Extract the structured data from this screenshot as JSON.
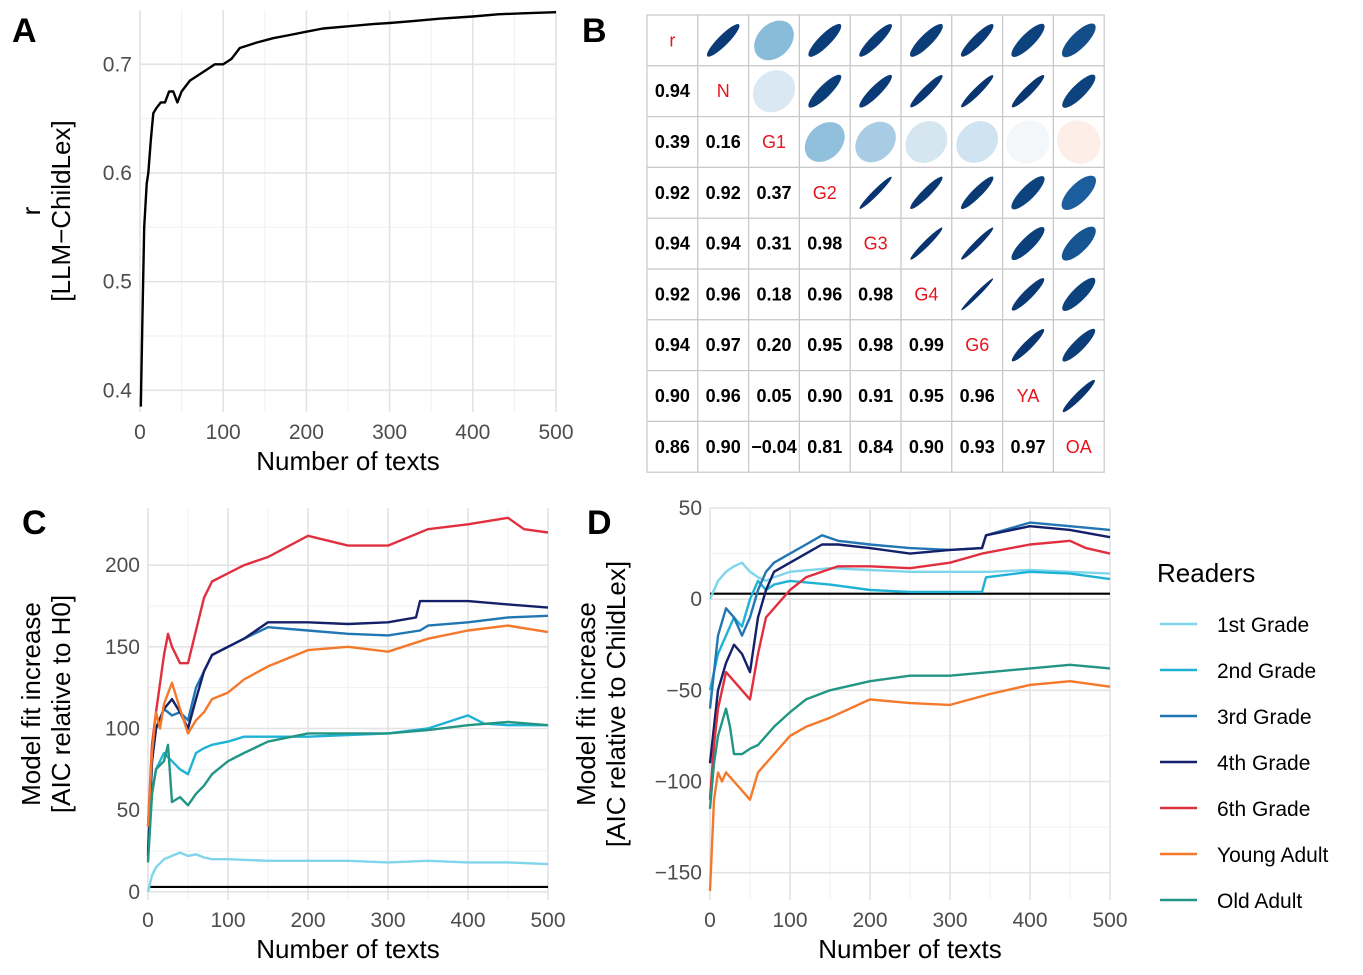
{
  "panel_labels": [
    "A",
    "B",
    "C",
    "D"
  ],
  "colors": {
    "1st Grade": "#7fd6ea",
    "2nd Grade": "#1fb2d6",
    "3rd Grade": "#2276b4",
    "4th Grade": "#14206a",
    "6th Grade": "#e0303f",
    "Young Adult": "#f4792b",
    "Old Adult": "#239584",
    "lineA": "#000000"
  },
  "chart_data": [
    {
      "id": "A",
      "type": "line",
      "title": "",
      "xlabel": "Number of texts",
      "ylabel": [
        "r",
        "[LLM−ChildLex]"
      ],
      "xlim": [
        0,
        500
      ],
      "ylim": [
        0.38,
        0.75
      ],
      "xticks": [
        0,
        100,
        200,
        300,
        400,
        500
      ],
      "yticks": [
        0.4,
        0.5,
        0.6,
        0.7
      ],
      "ytick_labels": [
        "0.4",
        "0.5",
        "0.6",
        "0.7"
      ],
      "grid": true,
      "series": [
        {
          "name": "r",
          "x": [
            1,
            3,
            5,
            8,
            10,
            13,
            16,
            20,
            25,
            30,
            35,
            40,
            45,
            50,
            60,
            70,
            80,
            90,
            100,
            110,
            120,
            140,
            160,
            180,
            200,
            220,
            250,
            280,
            300,
            330,
            360,
            400,
            430,
            460,
            500
          ],
          "y": [
            0.385,
            0.47,
            0.55,
            0.59,
            0.6,
            0.63,
            0.655,
            0.66,
            0.665,
            0.665,
            0.675,
            0.675,
            0.665,
            0.675,
            0.685,
            0.69,
            0.695,
            0.7,
            0.7,
            0.705,
            0.715,
            0.72,
            0.724,
            0.727,
            0.73,
            0.733,
            0.735,
            0.737,
            0.738,
            0.74,
            0.742,
            0.744,
            0.746,
            0.747,
            0.748
          ]
        }
      ]
    },
    {
      "id": "B",
      "type": "heatmap",
      "title": "",
      "labels": [
        "r",
        "N",
        "G1",
        "G2",
        "G3",
        "G4",
        "G6",
        "YA",
        "OA"
      ],
      "lower": [
        [],
        [
          0.94
        ],
        [
          0.39,
          0.16
        ],
        [
          0.92,
          0.92,
          0.37
        ],
        [
          0.94,
          0.94,
          0.31,
          0.98
        ],
        [
          0.92,
          0.96,
          0.18,
          0.96,
          0.98
        ],
        [
          0.94,
          0.97,
          0.2,
          0.95,
          0.98,
          0.99
        ],
        [
          0.9,
          0.96,
          0.05,
          0.9,
          0.91,
          0.95,
          0.96
        ],
        [
          0.86,
          0.9,
          -0.04,
          0.81,
          0.84,
          0.9,
          0.93,
          0.97
        ]
      ],
      "lower_labels": [
        [],
        [
          "0.94"
        ],
        [
          "0.39",
          "0.16"
        ],
        [
          "0.92",
          "0.92",
          "0.37"
        ],
        [
          "0.94",
          "0.94",
          "0.31",
          "0.98"
        ],
        [
          "0.92",
          "0.96",
          "0.18",
          "0.96",
          "0.98"
        ],
        [
          "0.94",
          "0.97",
          "0.20",
          "0.95",
          "0.98",
          "0.99"
        ],
        [
          "0.90",
          "0.96",
          "0.05",
          "0.90",
          "0.91",
          "0.95",
          "0.96"
        ],
        [
          "0.86",
          "0.90",
          "−0.04",
          "0.81",
          "0.84",
          "0.90",
          "0.93",
          "0.97"
        ]
      ]
    },
    {
      "id": "C",
      "type": "line",
      "title": "",
      "xlabel": "Number of texts",
      "ylabel": [
        "Model fit increase",
        "[AIC relative to H0]"
      ],
      "xlim": [
        0,
        500
      ],
      "ylim": [
        -5,
        235
      ],
      "xticks": [
        0,
        100,
        200,
        300,
        400,
        500
      ],
      "yticks": [
        0,
        50,
        100,
        150,
        200
      ],
      "ytick_labels": [
        "0",
        "50",
        "100",
        "150",
        "200"
      ],
      "hline": 3,
      "grid": true,
      "series": [
        {
          "name": "1st Grade",
          "x": [
            0,
            5,
            10,
            20,
            30,
            40,
            50,
            60,
            70,
            80,
            100,
            150,
            200,
            250,
            300,
            350,
            400,
            450,
            500
          ],
          "y": [
            0,
            10,
            15,
            20,
            22,
            24,
            22,
            23,
            21,
            20,
            20,
            19,
            19,
            19,
            18,
            19,
            18,
            18,
            17
          ]
        },
        {
          "name": "2nd Grade",
          "x": [
            0,
            5,
            10,
            20,
            30,
            40,
            50,
            60,
            70,
            80,
            100,
            120,
            150,
            200,
            250,
            300,
            350,
            400,
            420,
            450,
            500
          ],
          "y": [
            20,
            60,
            75,
            85,
            80,
            75,
            72,
            85,
            88,
            90,
            92,
            95,
            95,
            95,
            96,
            97,
            100,
            108,
            103,
            102,
            102
          ]
        },
        {
          "name": "3rd Grade",
          "x": [
            0,
            5,
            10,
            20,
            30,
            40,
            50,
            60,
            70,
            80,
            100,
            120,
            150,
            200,
            250,
            300,
            340,
            350,
            400,
            450,
            500
          ],
          "y": [
            25,
            80,
            100,
            112,
            108,
            110,
            105,
            125,
            135,
            145,
            150,
            155,
            162,
            160,
            158,
            157,
            160,
            163,
            165,
            168,
            169
          ]
        },
        {
          "name": "4th Grade",
          "x": [
            0,
            5,
            10,
            20,
            30,
            40,
            50,
            60,
            70,
            80,
            100,
            120,
            150,
            200,
            250,
            300,
            335,
            340,
            400,
            450,
            500
          ],
          "y": [
            22,
            80,
            100,
            112,
            118,
            110,
            100,
            118,
            135,
            145,
            150,
            155,
            165,
            165,
            164,
            165,
            168,
            178,
            178,
            176,
            174
          ]
        },
        {
          "name": "6th Grade",
          "x": [
            0,
            5,
            10,
            20,
            25,
            30,
            40,
            50,
            60,
            70,
            80,
            100,
            120,
            150,
            200,
            250,
            300,
            350,
            400,
            450,
            470,
            500
          ],
          "y": [
            40,
            90,
            110,
            145,
            158,
            150,
            140,
            140,
            160,
            180,
            190,
            195,
            200,
            205,
            218,
            212,
            212,
            222,
            225,
            229,
            222,
            220
          ]
        },
        {
          "name": "Young Adult",
          "x": [
            0,
            5,
            10,
            15,
            20,
            30,
            40,
            50,
            60,
            70,
            80,
            100,
            120,
            150,
            200,
            250,
            300,
            350,
            400,
            450,
            500
          ],
          "y": [
            40,
            85,
            110,
            100,
            115,
            128,
            112,
            97,
            105,
            110,
            118,
            122,
            130,
            138,
            148,
            150,
            147,
            155,
            160,
            163,
            159
          ]
        },
        {
          "name": "Old Adult",
          "x": [
            0,
            5,
            10,
            20,
            25,
            30,
            40,
            50,
            60,
            70,
            80,
            100,
            120,
            150,
            200,
            250,
            300,
            350,
            400,
            450,
            500
          ],
          "y": [
            18,
            60,
            75,
            80,
            90,
            55,
            58,
            53,
            60,
            65,
            72,
            80,
            85,
            92,
            97,
            97,
            97,
            99,
            102,
            104,
            102
          ]
        }
      ]
    },
    {
      "id": "D",
      "type": "line",
      "title": "",
      "xlabel": "Number of texts",
      "ylabel": [
        "Model fit increase",
        "[AIC relative to ChildLex]"
      ],
      "xlim": [
        0,
        500
      ],
      "ylim": [
        -165,
        50
      ],
      "xticks": [
        0,
        100,
        200,
        300,
        400,
        500
      ],
      "yticks": [
        -150,
        -100,
        -50,
        0,
        50
      ],
      "ytick_labels": [
        "−150",
        "−100",
        "−50",
        "0",
        "50"
      ],
      "hline": 3,
      "grid": true,
      "series": [
        {
          "name": "1st Grade",
          "x": [
            0,
            5,
            10,
            20,
            30,
            40,
            50,
            60,
            70,
            80,
            100,
            150,
            200,
            250,
            300,
            350,
            400,
            450,
            500
          ],
          "y": [
            0,
            5,
            10,
            15,
            18,
            20,
            15,
            12,
            10,
            12,
            15,
            17,
            16,
            15,
            15,
            15,
            16,
            15,
            14
          ]
        },
        {
          "name": "2nd Grade",
          "x": [
            0,
            5,
            10,
            20,
            30,
            40,
            50,
            60,
            70,
            80,
            100,
            150,
            200,
            250,
            300,
            340,
            345,
            400,
            450,
            500
          ],
          "y": [
            -50,
            -40,
            -30,
            -20,
            -10,
            -15,
            0,
            10,
            5,
            8,
            10,
            8,
            5,
            4,
            4,
            4,
            12,
            15,
            14,
            11
          ]
        },
        {
          "name": "3rd Grade",
          "x": [
            0,
            5,
            10,
            20,
            30,
            40,
            50,
            60,
            70,
            80,
            100,
            120,
            140,
            160,
            200,
            250,
            300,
            340,
            345,
            400,
            450,
            500
          ],
          "y": [
            -60,
            -40,
            -20,
            -5,
            -10,
            -20,
            -10,
            5,
            15,
            20,
            25,
            30,
            35,
            32,
            30,
            28,
            27,
            28,
            35,
            42,
            40,
            38
          ]
        },
        {
          "name": "4th Grade",
          "x": [
            0,
            5,
            10,
            20,
            30,
            40,
            50,
            60,
            70,
            80,
            100,
            120,
            140,
            160,
            200,
            250,
            300,
            340,
            345,
            400,
            450,
            500
          ],
          "y": [
            -90,
            -70,
            -50,
            -35,
            -25,
            -30,
            -40,
            -10,
            5,
            15,
            20,
            25,
            30,
            30,
            28,
            25,
            27,
            28,
            35,
            40,
            38,
            34
          ]
        },
        {
          "name": "6th Grade",
          "x": [
            0,
            5,
            10,
            20,
            30,
            40,
            50,
            60,
            70,
            80,
            100,
            120,
            140,
            160,
            200,
            250,
            300,
            340,
            400,
            450,
            470,
            500
          ],
          "y": [
            -110,
            -80,
            -60,
            -40,
            -45,
            -50,
            -55,
            -30,
            -10,
            -5,
            5,
            12,
            15,
            18,
            18,
            17,
            20,
            25,
            30,
            32,
            28,
            25
          ]
        },
        {
          "name": "Young Adult",
          "x": [
            0,
            5,
            10,
            15,
            20,
            30,
            40,
            50,
            60,
            70,
            80,
            100,
            120,
            150,
            200,
            250,
            300,
            350,
            400,
            450,
            500
          ],
          "y": [
            -160,
            -110,
            -95,
            -100,
            -95,
            -100,
            -105,
            -110,
            -95,
            -90,
            -85,
            -75,
            -70,
            -65,
            -55,
            -57,
            -58,
            -52,
            -47,
            -45,
            -48
          ]
        },
        {
          "name": "Old Adult",
          "x": [
            0,
            5,
            10,
            20,
            25,
            30,
            40,
            50,
            60,
            70,
            80,
            100,
            120,
            150,
            200,
            250,
            300,
            350,
            400,
            450,
            500
          ],
          "y": [
            -115,
            -90,
            -75,
            -60,
            -70,
            -85,
            -85,
            -82,
            -80,
            -75,
            -70,
            -62,
            -55,
            -50,
            -45,
            -42,
            -42,
            -40,
            -38,
            -36,
            -38
          ]
        }
      ]
    }
  ],
  "legend": {
    "title": "Readers",
    "items": [
      "1st Grade",
      "2nd Grade",
      "3rd Grade",
      "4th Grade",
      "6th Grade",
      "Young Adult",
      "Old Adult"
    ]
  }
}
